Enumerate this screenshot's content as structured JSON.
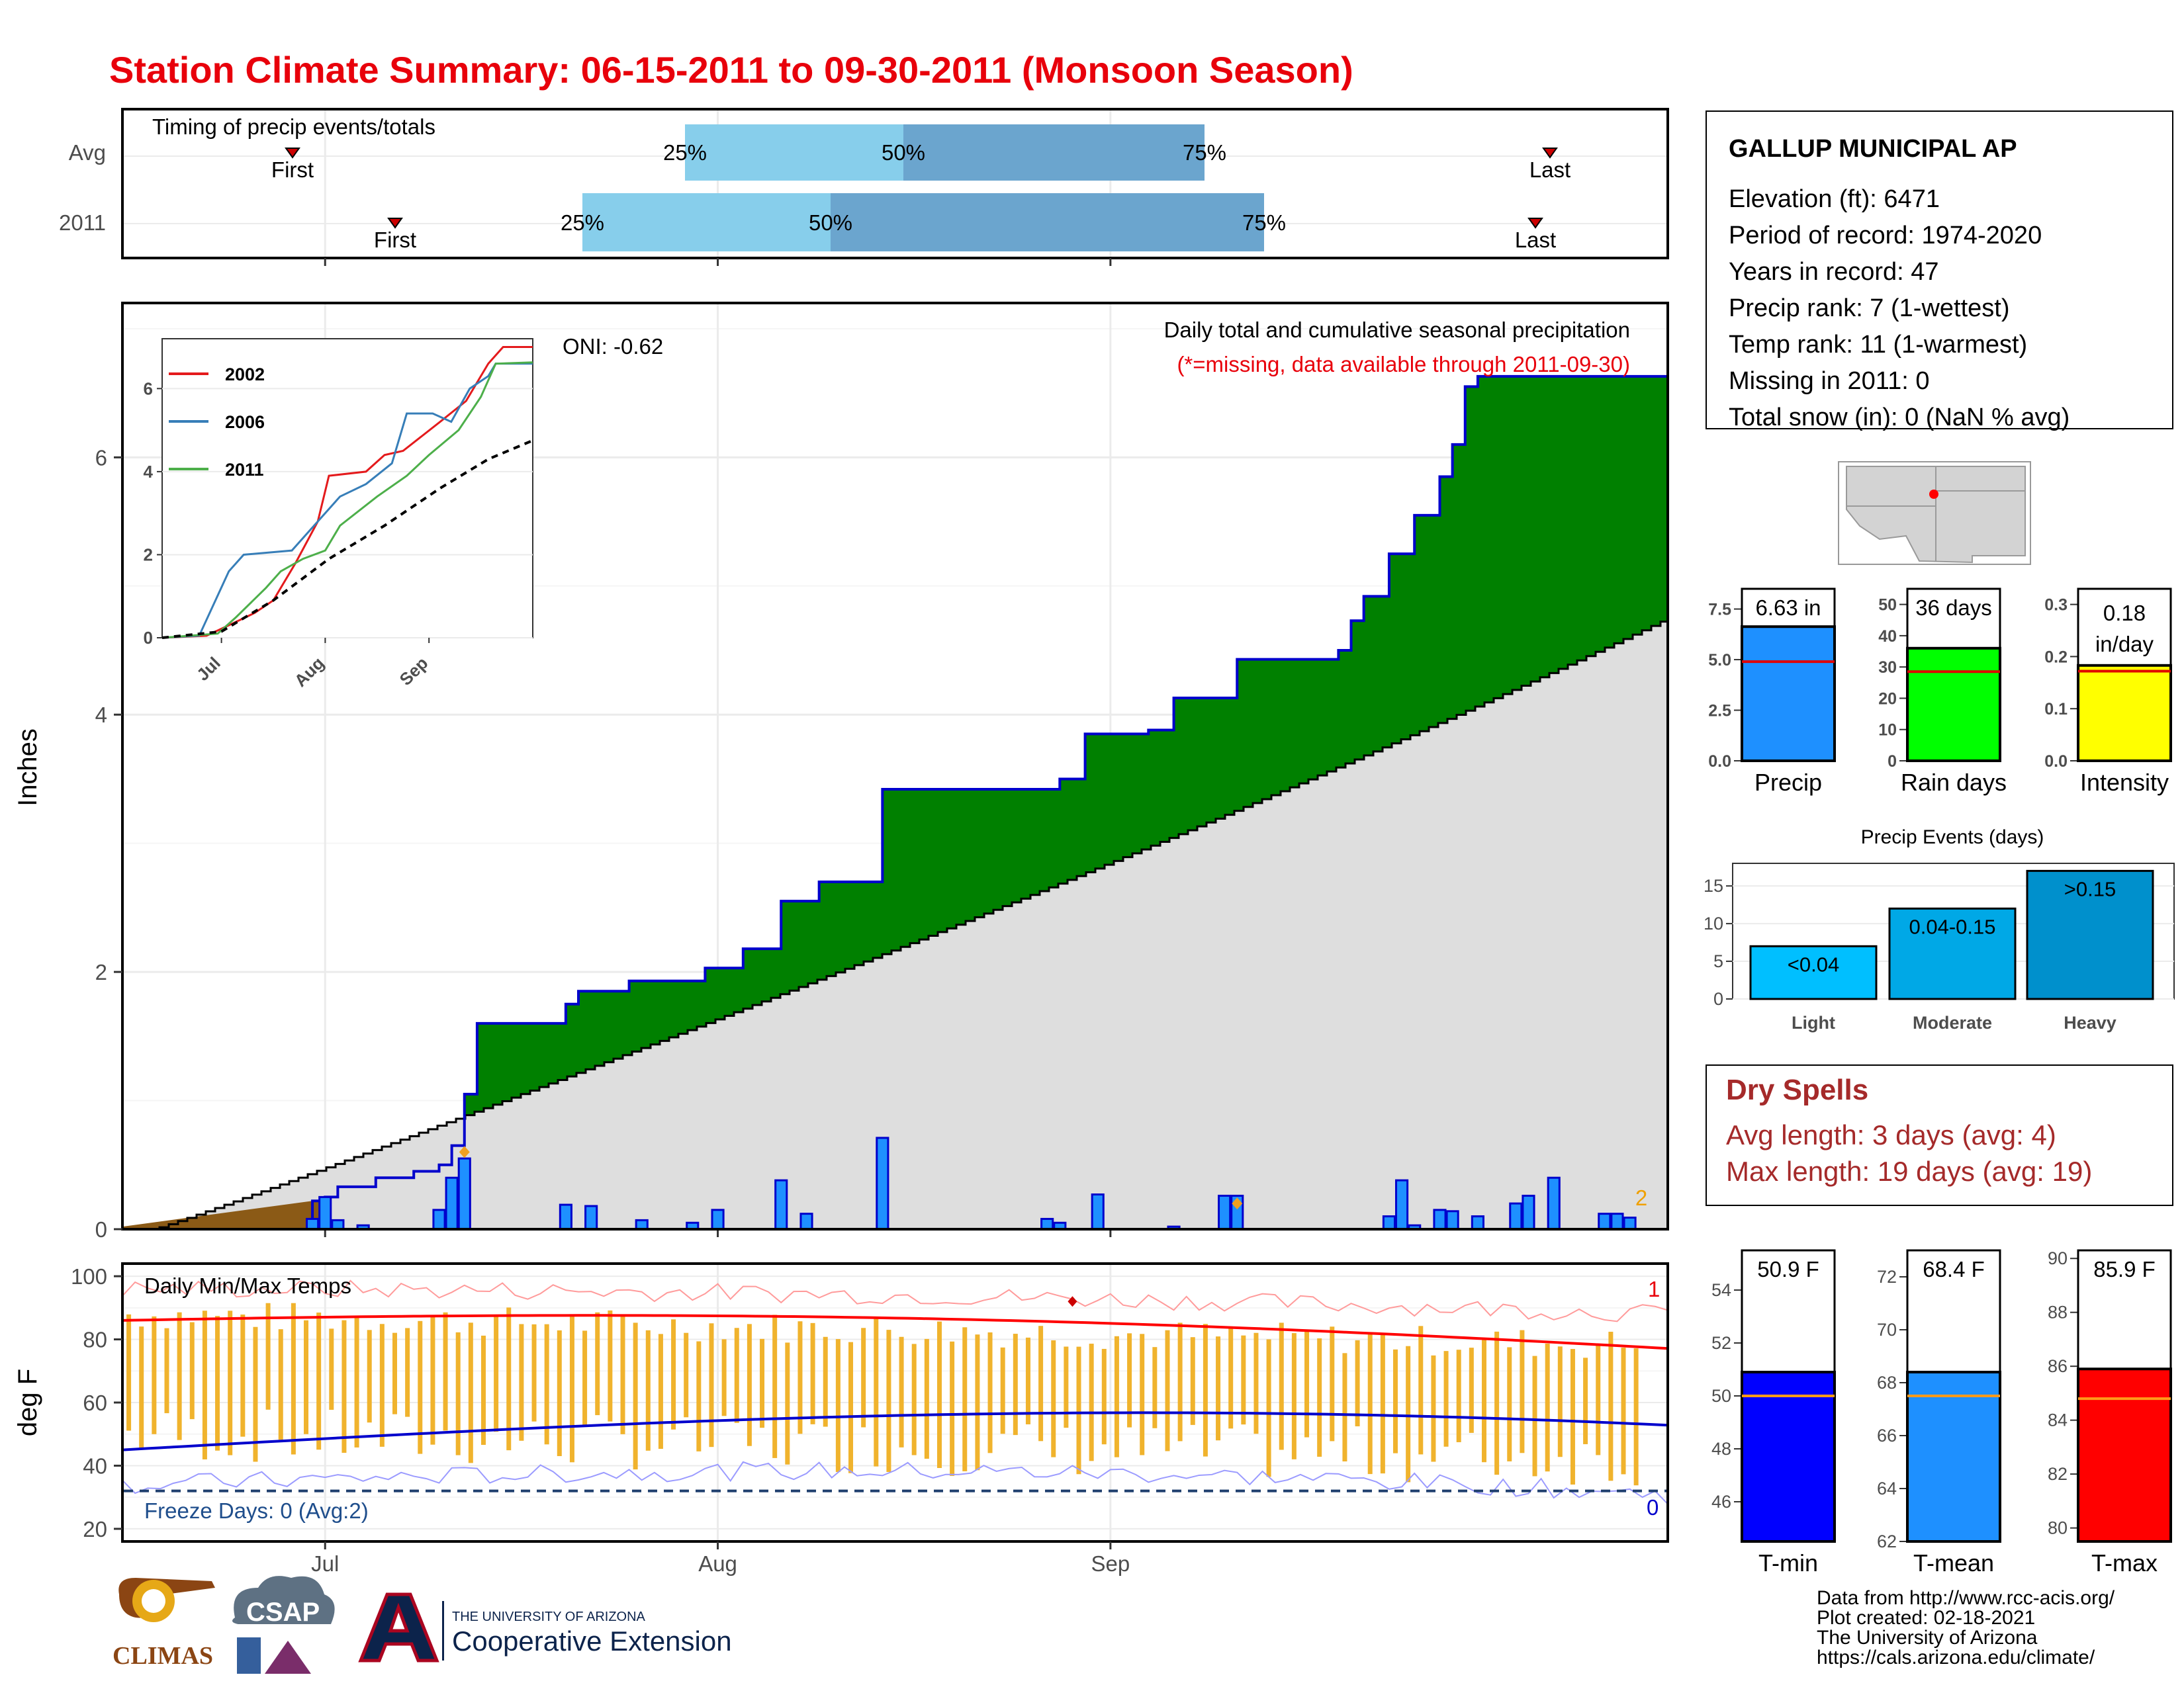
{
  "title": "Station Climate Summary: 06-15-2011 to 09-30-2011 (Monsoon Season)",
  "colors": {
    "title": "#e8000b",
    "green": "#008000",
    "blue_line": "#0000cc",
    "bar_blue": "#1e90ff",
    "brown": "#8b5a16",
    "gray_area": "#dedede",
    "orange": "#f0b32d",
    "red": "#ff0000"
  },
  "timing": {
    "panel_title": "Timing of precip events/totals",
    "rows": [
      "Avg",
      "2011"
    ],
    "label_first": "First",
    "label_last": "Last",
    "pct_labels": [
      "25%",
      "50%",
      "75%"
    ]
  },
  "main": {
    "ylabel": "Inches",
    "yticks": [
      "0",
      "2",
      "4",
      "6"
    ],
    "oni": "ONI: -0.62",
    "caption": "Daily total and cumulative seasonal precipitation",
    "missing_note": "(*=missing, data available through 2011-09-30)",
    "count_label": "2",
    "inset_legend": [
      "2002",
      "2006",
      "2011"
    ],
    "inset_yticks": [
      "0",
      "2",
      "4",
      "6"
    ],
    "inset_xticks": [
      "Jul",
      "Aug",
      "Sep"
    ]
  },
  "temps": {
    "ylabel": "deg F",
    "yticks": [
      "20",
      "40",
      "60",
      "80",
      "100"
    ],
    "title": "Daily Min/Max Temps",
    "freeze": "Freeze Days: 0 (Avg:2)",
    "count_top": "1",
    "count_bottom": "0",
    "xticks": [
      "Jul",
      "Aug",
      "Sep"
    ]
  },
  "station": {
    "name": "GALLUP MUNICIPAL AP",
    "lines": [
      "Elevation (ft): 6471",
      "Period of record: 1974-2020",
      "Years in record: 47",
      "Precip rank: 7 (1-wettest)",
      "Temp rank: 11 (1-warmest)",
      "Missing in 2011: 0",
      "Total snow (in): 0 (NaN % avg)"
    ]
  },
  "summary_bars": [
    {
      "label": "Precip",
      "value_text": "6.63 in",
      "value": 6.63,
      "avg": 4.9,
      "ymax": 8.5,
      "ticks": [
        "0.0",
        "2.5",
        "5.0",
        "7.5"
      ],
      "color": "#1e90ff"
    },
    {
      "label": "Rain days",
      "value_text": "36 days",
      "value": 36,
      "avg": 28.5,
      "ymax": 55,
      "ticks": [
        "0",
        "10",
        "20",
        "30",
        "40",
        "50"
      ],
      "color": "#00ff00"
    },
    {
      "label": "Intensity",
      "value_text": "0.18 in/day",
      "value": 0.183,
      "avg": 0.172,
      "ymax": 0.33,
      "ticks": [
        "0.0",
        "0.1",
        "0.2",
        "0.3"
      ],
      "color": "#ffff00"
    }
  ],
  "events": {
    "title": "Precip Events (days)",
    "categories": [
      "Light",
      "Moderate",
      "Heavy"
    ],
    "values": [
      7,
      12,
      17
    ],
    "labels": [
      "<0.04",
      "0.04-0.15",
      ">0.15"
    ],
    "colors": [
      "#00bfff",
      "#00a8e6",
      "#0090cc"
    ],
    "yticks": [
      "0",
      "5",
      "10",
      "15"
    ]
  },
  "dry_spells": {
    "title": "Dry Spells",
    "avg": "Avg length: 3 days (avg: 4)",
    "max": "Max length: 19 days (avg: 19)"
  },
  "temp_bars": [
    {
      "label": "T-min",
      "value_text": "50.9 F",
      "value": 50.9,
      "avg": 50.0,
      "ymin": 44.5,
      "ymax": 55.5,
      "ticks": [
        "46",
        "48",
        "50",
        "52",
        "54"
      ],
      "color": "#0000ff"
    },
    {
      "label": "T-mean",
      "value_text": "68.4 F",
      "value": 68.4,
      "avg": 67.5,
      "ymin": 62,
      "ymax": 73,
      "ticks": [
        "62",
        "64",
        "66",
        "68",
        "70",
        "72"
      ],
      "color": "#1e90ff"
    },
    {
      "label": "T-max",
      "value_text": "85.9 F",
      "value": 85.9,
      "avg": 84.8,
      "ymin": 79.5,
      "ymax": 90.3,
      "ticks": [
        "80",
        "82",
        "84",
        "86",
        "88",
        "90"
      ],
      "color": "#ff0000"
    }
  ],
  "footer": [
    "Data from http://www.rcc-acis.org/",
    "Plot created: 02-18-2021",
    "The University of Arizona",
    "https://cals.arizona.edu/climate/"
  ],
  "logos": {
    "climas": "CLIMAS",
    "csap": "CSAP",
    "ua_top": "THE UNIVERSITY OF ARIZONA",
    "ua_bottom": "Cooperative Extension"
  },
  "chart_data": {
    "type": "area",
    "title": "Daily total and cumulative seasonal precipitation",
    "ylabel": "Inches",
    "ylim": [
      0,
      7.2
    ],
    "cumulative_2011_points": [
      [
        "06-15",
        0
      ],
      [
        "06-30",
        0.22
      ],
      [
        "07-01",
        0.25
      ],
      [
        "07-02",
        0.33
      ],
      [
        "07-05",
        0.4
      ],
      [
        "07-08",
        0.45
      ],
      [
        "07-10",
        0.5
      ],
      [
        "07-11",
        0.65
      ],
      [
        "07-12",
        1.05
      ],
      [
        "07-13",
        1.6
      ],
      [
        "07-20",
        1.75
      ],
      [
        "07-21",
        1.85
      ],
      [
        "07-25",
        1.93
      ],
      [
        "07-31",
        2.03
      ],
      [
        "08-03",
        2.18
      ],
      [
        "08-06",
        2.55
      ],
      [
        "08-09",
        2.7
      ],
      [
        "08-14",
        3.42
      ],
      [
        "08-28",
        3.5
      ],
      [
        "08-30",
        3.85
      ],
      [
        "09-04",
        3.88
      ],
      [
        "09-06",
        4.13
      ],
      [
        "09-11",
        4.43
      ],
      [
        "09-19",
        4.5
      ],
      [
        "09-20",
        4.73
      ],
      [
        "09-21",
        4.92
      ],
      [
        "09-23",
        5.25
      ],
      [
        "09-25",
        5.55
      ],
      [
        "09-27",
        5.85
      ],
      [
        "09-28",
        6.1
      ],
      [
        "09-29",
        6.55
      ],
      [
        "09-30",
        6.63
      ]
    ],
    "daily_precip": [
      [
        "06-30",
        0.08
      ],
      [
        "07-01",
        0.25
      ],
      [
        "07-02",
        0.07
      ],
      [
        "07-04",
        0.03
      ],
      [
        "07-10",
        0.15
      ],
      [
        "07-11",
        0.4
      ],
      [
        "07-12",
        0.55
      ],
      [
        "07-20",
        0.19
      ],
      [
        "07-22",
        0.18
      ],
      [
        "07-26",
        0.07
      ],
      [
        "07-30",
        0.05
      ],
      [
        "08-01",
        0.15
      ],
      [
        "08-06",
        0.38
      ],
      [
        "08-08",
        0.12
      ],
      [
        "08-14",
        0.71
      ],
      [
        "08-27",
        0.08
      ],
      [
        "08-28",
        0.05
      ],
      [
        "08-31",
        0.27
      ],
      [
        "09-06",
        0.02
      ],
      [
        "09-10",
        0.26
      ],
      [
        "09-11",
        0.26
      ],
      [
        "09-23",
        0.1
      ],
      [
        "09-24",
        0.38
      ],
      [
        "09-25",
        0.03
      ],
      [
        "09-27",
        0.15
      ],
      [
        "09-28",
        0.14
      ],
      [
        "09-30",
        0.1
      ],
      [
        "10-03",
        0.2
      ],
      [
        "10-04",
        0.26
      ],
      [
        "10-06",
        0.4
      ],
      [
        "10-10",
        0.12
      ],
      [
        "10-11",
        0.12
      ],
      [
        "10-12",
        0.09
      ]
    ]
  }
}
